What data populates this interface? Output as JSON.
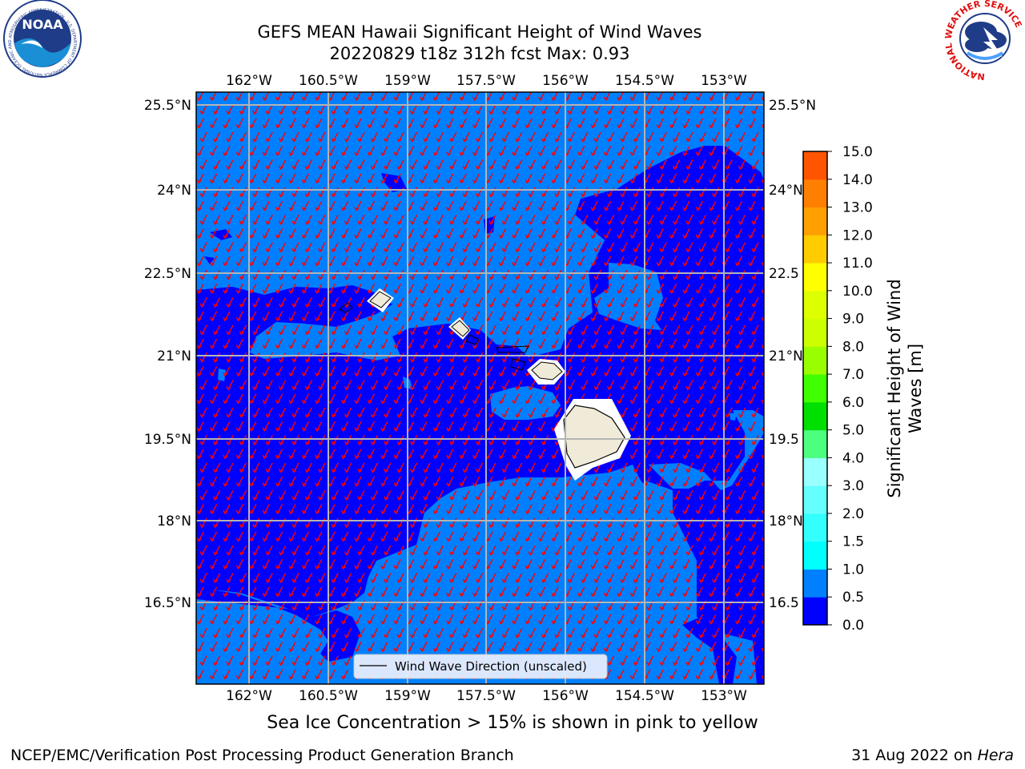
{
  "header": {
    "title_line1": "GEFS MEAN Hawaii Significant Height of Wind Waves",
    "title_line2": "20220829 t18z 312h fcst   Max: 0.93"
  },
  "logos": {
    "noaa_text": "NOAA",
    "noaa_ring_text": "NATIONAL OCEANIC AND ATMOSPHERIC ADMINISTRATION · U.S. DEPARTMENT OF COMMERCE",
    "nws_ring_text": "NATIONAL WEATHER SERVICE"
  },
  "map": {
    "lon_labels": [
      "162°W",
      "160.5°W",
      "159°W",
      "157.5°W",
      "156°W",
      "154.5°W",
      "153°W"
    ],
    "lat_labels": [
      "25.5°N",
      "24°N",
      "22.5°N",
      "21°N",
      "19.5°N",
      "18°N",
      "16.5°N"
    ],
    "lat_labels_right": [
      "25.5°N",
      "24°N",
      "22.5",
      "21°N",
      "19.5",
      "18°N",
      "16.5"
    ],
    "legend_label": "Wind Wave Direction (unscaled)",
    "colors": {
      "deep": "#0000ff",
      "light": "#0080ff",
      "arrow": "#ff0000",
      "land": "#efebd8",
      "grid": "#b4b4b4"
    }
  },
  "colorbar": {
    "label_line1": "Significant Height of Wind",
    "label_line2": "Waves [m]",
    "ticks": [
      "0.0",
      "0.5",
      "1.0",
      "1.5",
      "2.0",
      "3.0",
      "4.0",
      "5.0",
      "6.0",
      "7.0",
      "8.0",
      "9.0",
      "10.0",
      "11.0",
      "12.0",
      "13.0",
      "14.0",
      "15.0"
    ],
    "colors": [
      "#0000ff",
      "#0080ff",
      "#00ffff",
      "#33ffff",
      "#66ffff",
      "#99ffff",
      "#4cff7f",
      "#00e000",
      "#40ff00",
      "#99ff00",
      "#ccff00",
      "#ddff00",
      "#ffff00",
      "#ffcc00",
      "#ffa000",
      "#ff8000",
      "#ff5500",
      "#ff3300",
      "#ff0000"
    ]
  },
  "footer": {
    "note": "Sea Ice Concentration > 15% is shown in pink to yellow",
    "credit": "NCEP/EMC/Verification Post Processing Product Generation Branch",
    "date": "31 Aug 2022 on",
    "host": "Hera"
  }
}
